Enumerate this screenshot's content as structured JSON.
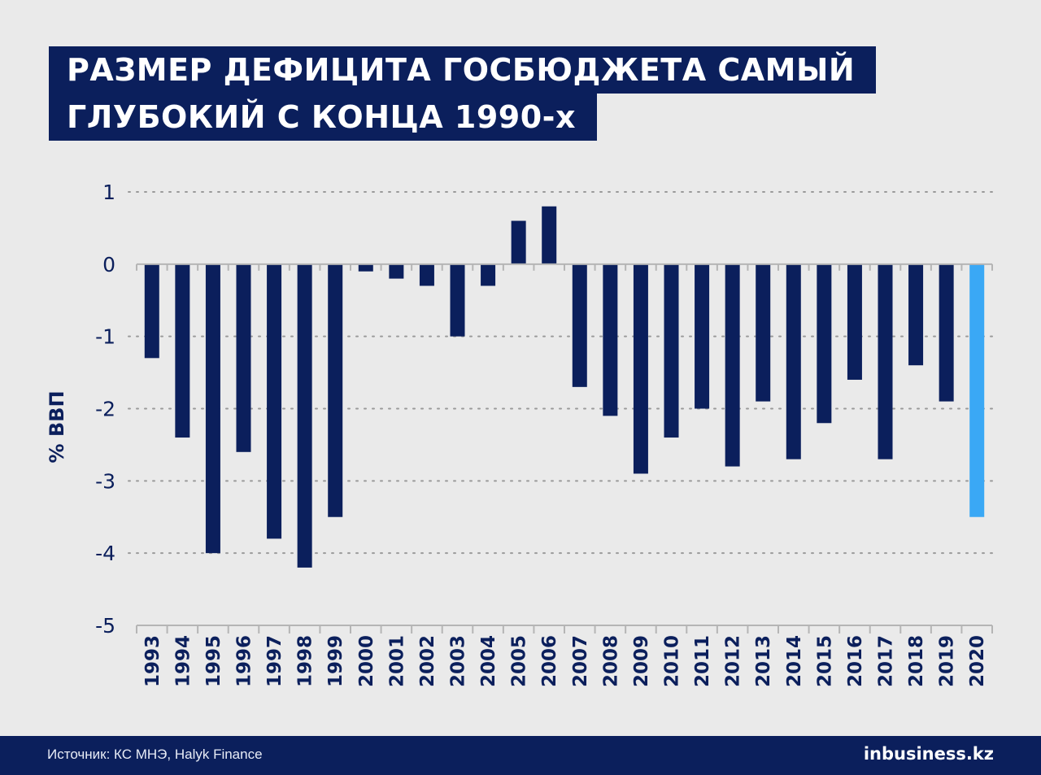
{
  "title": {
    "line1": "РАЗМЕР ДЕФИЦИТА ГОСБЮДЖЕТА САМЫЙ",
    "line2": "ГЛУБОКИЙ С КОНЦА 1990-х"
  },
  "footer": {
    "source": "Источник: КС МНЭ, Halyk Finance",
    "brand": "inbusiness.kz"
  },
  "colors": {
    "bar": "#0b1f5c",
    "highlight": "#3aa8f5",
    "background": "#eaeaea"
  },
  "chart_data": {
    "type": "bar",
    "title": "РАЗМЕР ДЕФИЦИТА ГОСБЮДЖЕТА САМЫЙ ГЛУБОКИЙ С КОНЦА 1990-х",
    "ylabel": "% ВВП",
    "xlabel": "",
    "ylim": [
      -5,
      1
    ],
    "yticks": [
      1,
      0,
      -1,
      -2,
      -3,
      -4,
      -5
    ],
    "grid": "horizontal dotted",
    "categories": [
      "1993",
      "1994",
      "1995",
      "1996",
      "1997",
      "1998",
      "1999",
      "2000",
      "2001",
      "2002",
      "2003",
      "2004",
      "2005",
      "2006",
      "2007",
      "2008",
      "2009",
      "2010",
      "2011",
      "2012",
      "2013",
      "2014",
      "2015",
      "2016",
      "2017",
      "2018",
      "2019",
      "2020"
    ],
    "values": [
      -1.3,
      -2.4,
      -4.0,
      -2.6,
      -3.8,
      -4.2,
      -3.5,
      -0.1,
      -0.2,
      -0.3,
      -1.0,
      -0.3,
      0.6,
      0.8,
      -1.7,
      -2.1,
      -2.9,
      -2.4,
      -2.0,
      -2.8,
      -1.9,
      -2.7,
      -2.2,
      -1.6,
      -2.7,
      -1.4,
      -1.9,
      -3.5
    ],
    "highlight_category": "2020"
  }
}
